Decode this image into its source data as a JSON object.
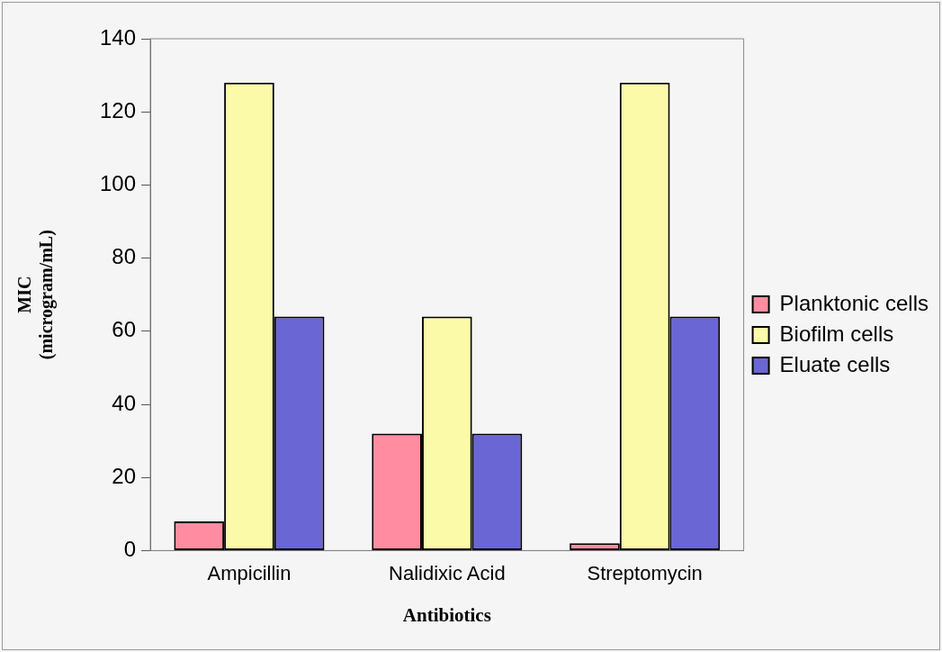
{
  "chart_data": {
    "type": "bar",
    "xlabel": "Antibiotics",
    "ylabel": "MIC\n(microgram/mL)",
    "categories": [
      "Ampicillin",
      "Nalidixic Acid",
      "Streptomycin"
    ],
    "series": [
      {
        "name": "Planktonic cells",
        "color": "#ff8ca0",
        "values": [
          8,
          32,
          2
        ]
      },
      {
        "name": "Biofilm cells",
        "color": "#fbfaa8",
        "values": [
          128,
          64,
          128
        ]
      },
      {
        "name": "Eluate cells",
        "color": "#6a66d4",
        "values": [
          64,
          32,
          64
        ]
      }
    ],
    "ylim": [
      0,
      140
    ],
    "yticks": [
      0,
      20,
      40,
      60,
      80,
      100,
      120,
      140
    ],
    "grid": false,
    "legend": "right"
  }
}
